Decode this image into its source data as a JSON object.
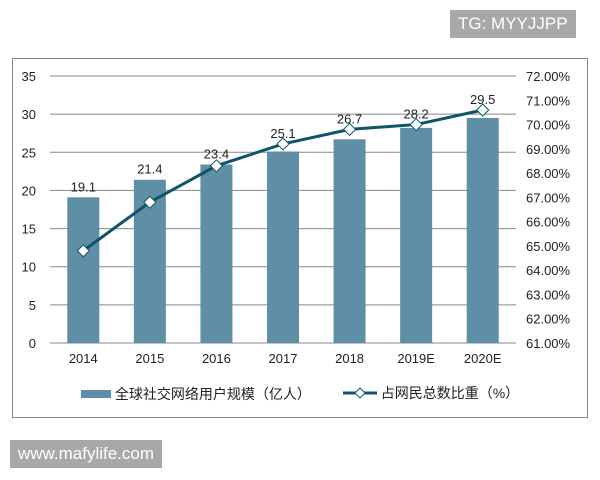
{
  "watermark_top": "TG: MYYJJPP",
  "watermark_bottom": "www.mafylife.com",
  "chart_data": {
    "type": "bar+line",
    "categories": [
      "2014",
      "2015",
      "2016",
      "2017",
      "2018",
      "2019E",
      "2020E"
    ],
    "series": [
      {
        "name": "全球社交网络用户规模（亿人）",
        "type": "bar",
        "axis": "left",
        "values": [
          19.1,
          21.4,
          23.4,
          25.1,
          26.7,
          28.2,
          29.5
        ],
        "color": "#5e8fa6"
      },
      {
        "name": "占网民总数比重（%）",
        "type": "line",
        "axis": "right",
        "values": [
          64.8,
          66.8,
          68.3,
          69.2,
          69.8,
          70.0,
          70.6
        ],
        "color": "#0f5468"
      }
    ],
    "y_left": {
      "min": 0,
      "max": 35,
      "ticks": [
        "0",
        "5",
        "10",
        "15",
        "20",
        "25",
        "30",
        "35"
      ]
    },
    "y_right": {
      "min": 61,
      "max": 72,
      "ticks": [
        "61.00%",
        "62.00%",
        "63.00%",
        "64.00%",
        "65.00%",
        "66.00%",
        "67.00%",
        "68.00%",
        "69.00%",
        "70.00%",
        "71.00%",
        "72.00%"
      ]
    },
    "grid": true,
    "legend": "bottom"
  }
}
